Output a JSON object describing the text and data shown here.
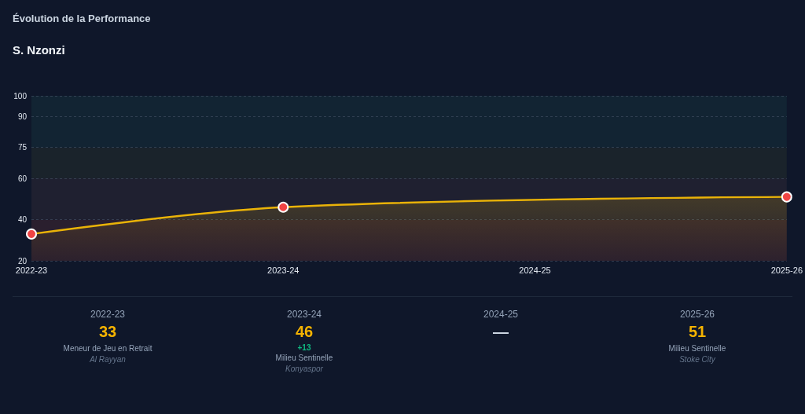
{
  "chart_data": {
    "type": "area",
    "title": "Évolution de la Performance",
    "subtitle": "S. Nzonzi",
    "categories": [
      "2022-23",
      "2023-24",
      "2024-25",
      "2025-26"
    ],
    "series": [
      {
        "color": "#eab308",
        "colors": [
          "#ef4444",
          "#ef4444",
          "#ef4444",
          "#ef4444"
        ],
        "values": [
          33,
          46,
          null,
          51
        ],
        "value_labels": [
          "33",
          "46",
          "—",
          "51"
        ]
      }
    ],
    "ylim": [
      20,
      100
    ],
    "yticks": [
      20,
      40,
      60,
      75,
      90,
      100
    ],
    "grid": "y",
    "marker": "circle",
    "line_style": "solid",
    "bands": [
      {
        "axis": "y",
        "from": 20,
        "to": 40,
        "color": "#2a1f2e"
      },
      {
        "axis": "y",
        "from": 40,
        "to": 60,
        "color": "#1f2030"
      },
      {
        "axis": "y",
        "from": 60,
        "to": 75,
        "color": "#1a232b"
      },
      {
        "axis": "y",
        "from": 75,
        "to": 100,
        "color": "#122433"
      }
    ],
    "annotations": [
      "Meneur de Jeu en Retrait",
      "Al Rayyan",
      "+13",
      "Milieu Sentinelle",
      "Konyaspor",
      "Milieu Sentinelle",
      "Stoke City"
    ]
  }
}
